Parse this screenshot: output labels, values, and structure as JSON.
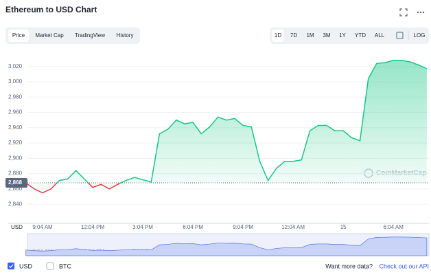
{
  "ui": {
    "tabs": [
      "Price",
      "Market Cap",
      "TradingView",
      "History"
    ],
    "ranges": [
      "1D",
      "7D",
      "1M",
      "3M",
      "1Y",
      "YTD",
      "ALL"
    ],
    "log": "LOG",
    "currencies": [
      "USD",
      "BTC"
    ],
    "more_data": "Want more data?",
    "api_link": "Check out our API",
    "watermark": "CoinMarketCap"
  },
  "chart_data": {
    "type": "line",
    "title": "Ethereum to USD Chart",
    "x_axis_label": "USD",
    "categories": [
      null,
      null,
      "9:04 AM",
      null,
      null,
      null,
      null,
      null,
      "12:04 PM",
      null,
      null,
      null,
      null,
      null,
      "3:04 PM",
      null,
      null,
      null,
      null,
      null,
      "6:04 PM",
      null,
      null,
      null,
      null,
      null,
      "9:04 PM",
      null,
      null,
      null,
      null,
      null,
      "12:04 AM",
      null,
      null,
      null,
      null,
      null,
      "15",
      null,
      null,
      null,
      null,
      null,
      "6:04 AM",
      null,
      null,
      null,
      null
    ],
    "series": [
      {
        "name": "USD",
        "color": "#16c784",
        "values": [
          2868,
          2860,
          2855,
          2860,
          2871,
          2873,
          2884,
          2873,
          2862,
          2866,
          2860,
          2866,
          2871,
          2875,
          2872,
          2869,
          2932,
          2938,
          2950,
          2945,
          2947,
          2932,
          2941,
          2954,
          2950,
          2952,
          2943,
          2941,
          2896,
          2871,
          2887,
          2896,
          2896,
          2898,
          2936,
          2943,
          2943,
          2936,
          2936,
          2927,
          2923,
          3004,
          3024,
          3025,
          3028,
          3028,
          3026,
          3022,
          3017
        ]
      }
    ],
    "below_color": "#ea3943",
    "reference": {
      "value": 2868,
      "label": "2,868"
    },
    "ylim": [
      2815,
      3035
    ],
    "yticks": [
      {
        "value": 2840,
        "label": "2,840"
      },
      {
        "value": 2860,
        "label": "2,860"
      },
      {
        "value": 2880,
        "label": "2,880"
      },
      {
        "value": 2900,
        "label": "2,900"
      },
      {
        "value": 2920,
        "label": "2,920"
      },
      {
        "value": 2940,
        "label": "2,940"
      },
      {
        "value": 2960,
        "label": "2,960"
      },
      {
        "value": 2980,
        "label": "2,980"
      },
      {
        "value": 3000,
        "label": "3,000"
      },
      {
        "value": 3020,
        "label": "3,020"
      }
    ],
    "grid": true
  }
}
